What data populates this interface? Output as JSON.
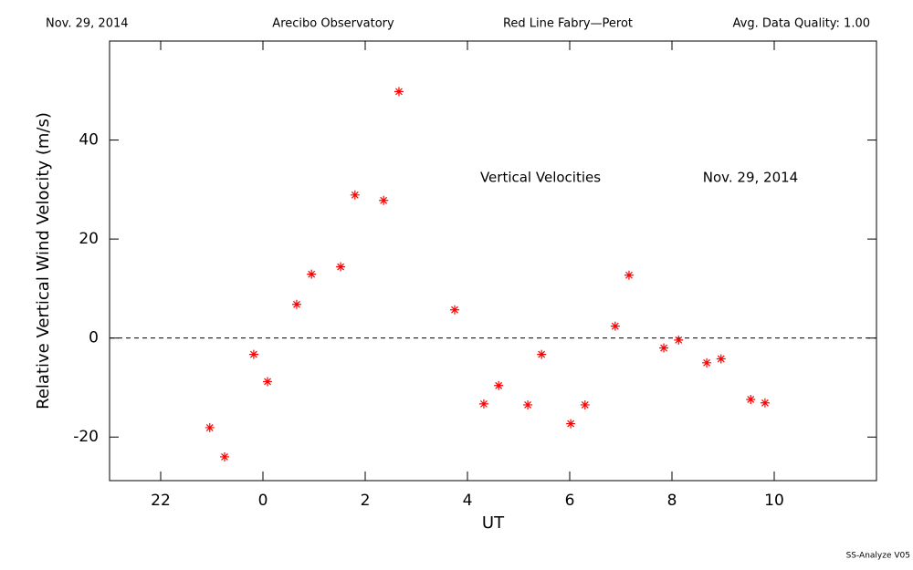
{
  "chart_data": {
    "type": "scatter",
    "header": [
      "Nov. 29, 2014",
      "Arecibo Observatory",
      "Red Line Fabry—Perot",
      "Avg. Data Quality: 1.00"
    ],
    "annotations": [
      "Vertical Velocities",
      "Nov. 29, 2014"
    ],
    "footer": "SS-Analyze V05",
    "xlabel": "UT",
    "ylabel": "Relative Vertical Wind Velocity (m/s)",
    "xlim": [
      -3,
      12
    ],
    "ylim": [
      -28.8,
      60
    ],
    "xticks": [
      {
        "value": -2,
        "label": "22"
      },
      0,
      2,
      4,
      6,
      8,
      10
    ],
    "yticks": [
      -20,
      0,
      20,
      40
    ],
    "hline": 0,
    "series": [
      {
        "color": "#ff0000",
        "x": [
          -1.04,
          -0.75,
          -0.18,
          0.09,
          0.66,
          0.95,
          1.52,
          1.8,
          2.36,
          2.66,
          3.75,
          4.32,
          4.61,
          5.18,
          5.45,
          6.02,
          6.3,
          6.89,
          7.16,
          7.84,
          8.13,
          8.68,
          8.96,
          9.54,
          9.82
        ],
        "values": [
          -18.1,
          -24.0,
          -3.3,
          -8.8,
          6.8,
          12.9,
          14.4,
          28.9,
          27.8,
          49.8,
          5.7,
          -13.3,
          -9.6,
          -13.5,
          -3.3,
          -17.3,
          -13.5,
          2.4,
          12.7,
          -2.0,
          -0.4,
          -5.0,
          -4.2,
          -12.4,
          -13.1
        ]
      }
    ]
  }
}
